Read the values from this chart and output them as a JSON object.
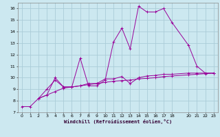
{
  "xlabel": "Windchill (Refroidissement éolien,°C)",
  "ylabel": "",
  "background_color": "#cce8f0",
  "grid_color": "#aaccd8",
  "line_color": "#990099",
  "xlim": [
    -0.5,
    23.5
  ],
  "ylim": [
    7.0,
    16.5
  ],
  "xticks": [
    0,
    1,
    2,
    3,
    4,
    5,
    6,
    7,
    8,
    9,
    10,
    11,
    12,
    13,
    14,
    15,
    16,
    17,
    18,
    20,
    21,
    22,
    23
  ],
  "yticks": [
    7,
    8,
    9,
    10,
    11,
    12,
    13,
    14,
    15,
    16
  ],
  "lines": [
    {
      "x": [
        0,
        1,
        2,
        3,
        4,
        5,
        6,
        7,
        8,
        9,
        10,
        11,
        12,
        13,
        14,
        15,
        16,
        17,
        18,
        20,
        21,
        22,
        23
      ],
      "y": [
        7.5,
        7.5,
        8.2,
        8.5,
        8.8,
        9.1,
        9.2,
        9.3,
        9.4,
        9.5,
        9.6,
        9.7,
        9.75,
        9.8,
        9.9,
        9.95,
        10.0,
        10.1,
        10.15,
        10.25,
        10.3,
        10.35,
        10.4
      ]
    },
    {
      "x": [
        2,
        3,
        4,
        5,
        6,
        7,
        8,
        9,
        10,
        11,
        12,
        13,
        14,
        15,
        16,
        17,
        18,
        20,
        21,
        22,
        23
      ],
      "y": [
        8.2,
        8.5,
        10.0,
        9.2,
        9.2,
        11.7,
        9.3,
        9.3,
        9.8,
        13.1,
        14.3,
        12.5,
        16.2,
        15.7,
        15.7,
        16.0,
        14.8,
        12.8,
        11.0,
        10.4,
        10.4
      ]
    },
    {
      "x": [
        2,
        3,
        4,
        5,
        6,
        7,
        8,
        9,
        10,
        11,
        12,
        13,
        14,
        15,
        16,
        17,
        18,
        20,
        21,
        22,
        23
      ],
      "y": [
        8.2,
        9.0,
        9.8,
        9.2,
        9.2,
        9.3,
        9.5,
        9.5,
        9.9,
        9.9,
        10.1,
        9.5,
        10.0,
        10.15,
        10.2,
        10.3,
        10.3,
        10.4,
        10.4,
        10.4,
        10.4
      ]
    }
  ]
}
